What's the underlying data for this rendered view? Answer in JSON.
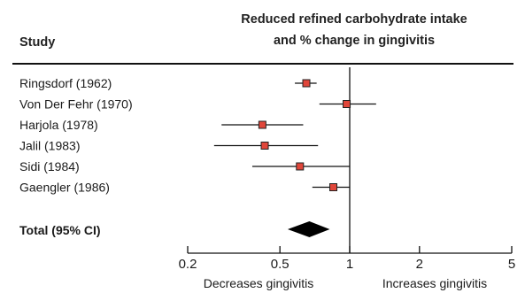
{
  "chart_data": {
    "type": "forest",
    "header_study": "Study",
    "header_effect_line1": "Reduced refined carbohydrate intake",
    "header_effect_line2": "and % change in gingivitis",
    "x_scale": "log",
    "xlim": [
      0.2,
      5
    ],
    "x_ticks": [
      {
        "value": 0.2,
        "label": "0.2"
      },
      {
        "value": 0.5,
        "label": "0.5"
      },
      {
        "value": 1,
        "label": "1"
      },
      {
        "value": 2,
        "label": "2"
      },
      {
        "value": 5,
        "label": "5"
      }
    ],
    "reference_line": 1,
    "left_direction_label": "Decreases gingivitis",
    "right_direction_label": "Increases gingivitis",
    "marker_color": "#e0463a",
    "studies": [
      {
        "label": "Ringsdorf (1962)",
        "estimate": 0.65,
        "ci_low": 0.58,
        "ci_high": 0.72
      },
      {
        "label": "Von Der Fehr (1970)",
        "estimate": 0.97,
        "ci_low": 0.74,
        "ci_high": 1.3
      },
      {
        "label": "Harjola (1978)",
        "estimate": 0.42,
        "ci_low": 0.28,
        "ci_high": 0.63
      },
      {
        "label": "Jalil (1983)",
        "estimate": 0.43,
        "ci_low": 0.26,
        "ci_high": 0.73
      },
      {
        "label": "Sidi (1984)",
        "estimate": 0.61,
        "ci_low": 0.38,
        "ci_high": 1.0
      },
      {
        "label": "Gaengler (1986)",
        "estimate": 0.85,
        "ci_low": 0.69,
        "ci_high": 1.0
      }
    ],
    "total": {
      "label": "Total (95% CI)",
      "estimate": 0.67,
      "ci_low": 0.54,
      "ci_high": 0.82
    }
  }
}
